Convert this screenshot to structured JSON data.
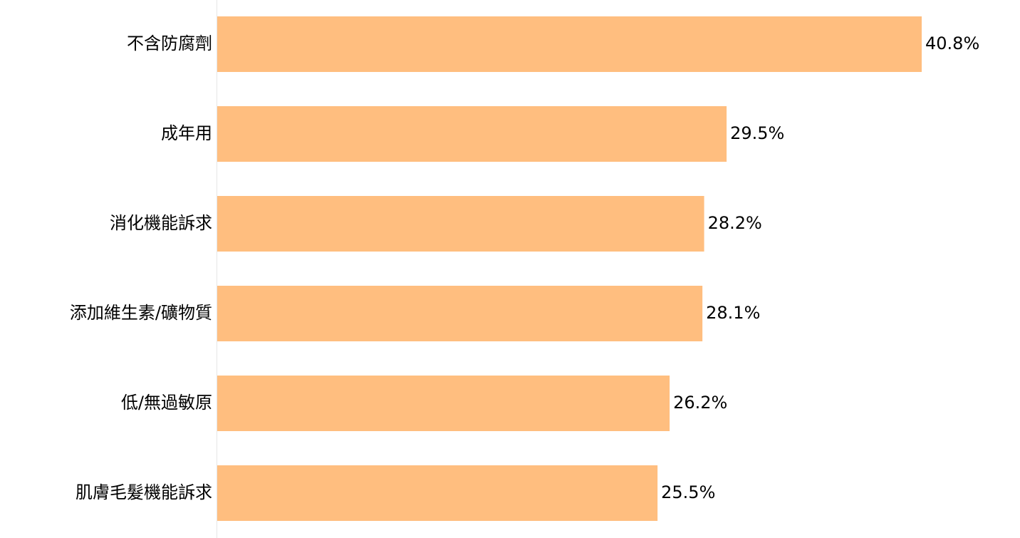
{
  "chart_data": {
    "type": "bar",
    "orientation": "horizontal",
    "categories": [
      "不含防腐劑",
      "成年用",
      "消化機能訴求",
      "添加維生素/礦物質",
      "低/無過敏原",
      "肌膚毛髮機能訴求"
    ],
    "values": [
      40.8,
      29.5,
      28.2,
      28.1,
      26.2,
      25.5
    ],
    "value_labels": [
      "40.8%",
      "29.5%",
      "28.2%",
      "28.1%",
      "26.2%",
      "25.5%"
    ],
    "color": "#ffbe7f"
  }
}
